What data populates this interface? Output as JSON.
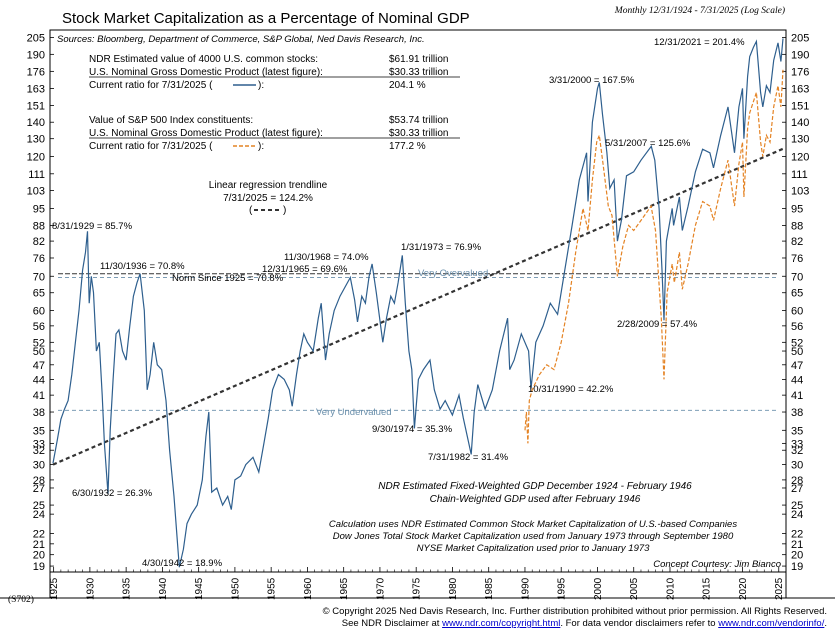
{
  "chart_data": {
    "type": "line",
    "title": "Stock Market Capitalization as a Percentage of Nominal GDP",
    "subtitle": "Monthly 12/31/1924 - 7/31/2025 (Log Scale)",
    "source": "Sources: Bloomberg, Department of Commerce, S&P Global, Ned Davis Research, Inc.",
    "chart_id": "(S702)",
    "y_scale": "log",
    "ylim": [
      18.5,
      212
    ],
    "xlim": [
      1924.5,
      2026.0
    ],
    "y_ticks": [
      19,
      20,
      21,
      22,
      24,
      25,
      27,
      28,
      30,
      32,
      33,
      35,
      38,
      41,
      44,
      47,
      50,
      52,
      56,
      60,
      65,
      70,
      76,
      82,
      88,
      95,
      103,
      111,
      120,
      130,
      140,
      151,
      163,
      176,
      190,
      205
    ],
    "x_ticks": [
      1925,
      1930,
      1935,
      1940,
      1945,
      1950,
      1955,
      1960,
      1965,
      1970,
      1975,
      1980,
      1985,
      1990,
      1995,
      2000,
      2005,
      2010,
      2015,
      2020,
      2025
    ],
    "series": [
      {
        "name": "NDR Estimated value of 4000 U.S. common stocks / GDP",
        "color": "#2e5f8e",
        "points": [
          [
            1924.92,
            30.2
          ],
          [
            1925.5,
            33.5
          ],
          [
            1926.0,
            36.8
          ],
          [
            1926.5,
            38.5
          ],
          [
            1927.0,
            40.0
          ],
          [
            1927.5,
            45.0
          ],
          [
            1928.0,
            52.0
          ],
          [
            1928.5,
            60.0
          ],
          [
            1929.0,
            72.0
          ],
          [
            1929.4,
            78.0
          ],
          [
            1929.67,
            85.7
          ],
          [
            1929.9,
            62.0
          ],
          [
            1930.2,
            70.0
          ],
          [
            1930.5,
            65.0
          ],
          [
            1930.9,
            50.0
          ],
          [
            1931.3,
            52.0
          ],
          [
            1931.7,
            41.0
          ],
          [
            1932.0,
            33.0
          ],
          [
            1932.5,
            26.3
          ],
          [
            1932.8,
            35.0
          ],
          [
            1933.2,
            44.0
          ],
          [
            1933.6,
            54.0
          ],
          [
            1934.0,
            55.0
          ],
          [
            1934.5,
            50.0
          ],
          [
            1935.0,
            48.0
          ],
          [
            1935.5,
            56.0
          ],
          [
            1936.0,
            64.0
          ],
          [
            1936.5,
            68.0
          ],
          [
            1936.92,
            70.8
          ],
          [
            1937.5,
            60.0
          ],
          [
            1937.9,
            42.0
          ],
          [
            1938.3,
            45.0
          ],
          [
            1938.8,
            52.0
          ],
          [
            1939.3,
            47.0
          ],
          [
            1939.9,
            46.0
          ],
          [
            1940.5,
            40.0
          ],
          [
            1941.0,
            32.0
          ],
          [
            1941.6,
            26.0
          ],
          [
            1942.33,
            18.9
          ],
          [
            1942.9,
            20.5
          ],
          [
            1943.4,
            23.0
          ],
          [
            1944.0,
            24.0
          ],
          [
            1944.8,
            25.0
          ],
          [
            1945.5,
            28.0
          ],
          [
            1946.0,
            34.0
          ],
          [
            1946.4,
            38.0
          ],
          [
            1946.8,
            26.5
          ],
          [
            1947.5,
            27.0
          ],
          [
            1948.3,
            25.0
          ],
          [
            1949.0,
            26.0
          ],
          [
            1949.5,
            24.5
          ],
          [
            1950.0,
            28.0
          ],
          [
            1950.8,
            28.5
          ],
          [
            1951.5,
            30.0
          ],
          [
            1952.5,
            31.0
          ],
          [
            1953.3,
            29.0
          ],
          [
            1954.0,
            33.0
          ],
          [
            1954.6,
            37.0
          ],
          [
            1955.2,
            42.0
          ],
          [
            1956.0,
            45.0
          ],
          [
            1956.8,
            44.0
          ],
          [
            1957.5,
            42.0
          ],
          [
            1957.9,
            39.0
          ],
          [
            1958.5,
            45.0
          ],
          [
            1959.0,
            50.0
          ],
          [
            1959.5,
            54.0
          ],
          [
            1960.0,
            52.0
          ],
          [
            1960.8,
            50.0
          ],
          [
            1961.5,
            58.0
          ],
          [
            1961.9,
            62.0
          ],
          [
            1962.5,
            48.0
          ],
          [
            1963.0,
            54.0
          ],
          [
            1963.7,
            60.0
          ],
          [
            1964.5,
            64.0
          ],
          [
            1965.92,
            69.6
          ],
          [
            1966.5,
            63.0
          ],
          [
            1966.9,
            57.0
          ],
          [
            1967.5,
            64.0
          ],
          [
            1968.0,
            62.0
          ],
          [
            1968.5,
            70.0
          ],
          [
            1968.92,
            74.0
          ],
          [
            1969.5,
            65.0
          ],
          [
            1970.4,
            52.0
          ],
          [
            1970.9,
            58.0
          ],
          [
            1971.5,
            64.0
          ],
          [
            1972.0,
            62.0
          ],
          [
            1972.5,
            68.0
          ],
          [
            1973.08,
            76.9
          ],
          [
            1973.5,
            62.0
          ],
          [
            1974.0,
            50.0
          ],
          [
            1974.4,
            46.0
          ],
          [
            1974.75,
            35.3
          ],
          [
            1975.3,
            44.0
          ],
          [
            1976.0,
            46.0
          ],
          [
            1976.9,
            48.0
          ],
          [
            1977.5,
            42.0
          ],
          [
            1978.3,
            38.5
          ],
          [
            1979.0,
            40.0
          ],
          [
            1980.0,
            37.5
          ],
          [
            1980.9,
            41.0
          ],
          [
            1981.5,
            37.0
          ],
          [
            1982.58,
            31.4
          ],
          [
            1983.0,
            38.0
          ],
          [
            1983.5,
            43.0
          ],
          [
            1984.5,
            38.5
          ],
          [
            1985.5,
            42.0
          ],
          [
            1986.5,
            50.0
          ],
          [
            1987.6,
            58.0
          ],
          [
            1987.9,
            46.0
          ],
          [
            1988.5,
            48.0
          ],
          [
            1989.5,
            54.0
          ],
          [
            1990.5,
            50.0
          ],
          [
            1990.83,
            42.2
          ],
          [
            1991.5,
            52.0
          ],
          [
            1992.5,
            56.0
          ],
          [
            1993.5,
            62.0
          ],
          [
            1994.5,
            59.0
          ],
          [
            1995.5,
            72.0
          ],
          [
            1996.5,
            88.0
          ],
          [
            1997.5,
            108.0
          ],
          [
            1998.5,
            122.0
          ],
          [
            1998.7,
            98.0
          ],
          [
            1999.3,
            140.0
          ],
          [
            2000.0,
            163.0
          ],
          [
            2000.25,
            167.5
          ],
          [
            2000.7,
            145.0
          ],
          [
            2001.3,
            122.0
          ],
          [
            2001.7,
            104.0
          ],
          [
            2002.3,
            108.0
          ],
          [
            2002.75,
            82.0
          ],
          [
            2003.3,
            90.0
          ],
          [
            2004.0,
            110.0
          ],
          [
            2005.0,
            112.0
          ],
          [
            2006.0,
            118.0
          ],
          [
            2007.42,
            125.6
          ],
          [
            2007.9,
            118.0
          ],
          [
            2008.5,
            95.0
          ],
          [
            2008.9,
            72.0
          ],
          [
            2009.17,
            57.4
          ],
          [
            2009.5,
            82.0
          ],
          [
            2010.3,
            95.0
          ],
          [
            2010.5,
            88.0
          ],
          [
            2011.3,
            100.0
          ],
          [
            2011.7,
            86.0
          ],
          [
            2012.5,
            96.0
          ],
          [
            2013.5,
            112.0
          ],
          [
            2014.5,
            124.0
          ],
          [
            2015.5,
            122.0
          ],
          [
            2016.0,
            114.0
          ],
          [
            2017.0,
            132.0
          ],
          [
            2018.0,
            150.0
          ],
          [
            2018.9,
            122.0
          ],
          [
            2019.5,
            150.0
          ],
          [
            2020.0,
            163.0
          ],
          [
            2020.2,
            130.0
          ],
          [
            2020.7,
            172.0
          ],
          [
            2021.0,
            188.0
          ],
          [
            2021.5,
            196.0
          ],
          [
            2021.92,
            201.4
          ],
          [
            2022.5,
            160.0
          ],
          [
            2022.8,
            150.0
          ],
          [
            2023.3,
            165.0
          ],
          [
            2023.8,
            160.0
          ],
          [
            2024.3,
            185.0
          ],
          [
            2024.9,
            200.0
          ],
          [
            2025.3,
            184.0
          ],
          [
            2025.58,
            204.1
          ]
        ]
      },
      {
        "name": "Value of S&P 500 Index constituents / GDP",
        "color": "#e48324",
        "dashed": true,
        "points": [
          [
            1990.0,
            35.0
          ],
          [
            1990.2,
            38.0
          ],
          [
            1990.4,
            33.0
          ],
          [
            1990.6,
            40.0
          ],
          [
            1991.0,
            42.0
          ],
          [
            1992.0,
            45.0
          ],
          [
            1993.0,
            47.0
          ],
          [
            1994.0,
            46.0
          ],
          [
            1995.0,
            52.0
          ],
          [
            1996.0,
            62.0
          ],
          [
            1997.0,
            78.0
          ],
          [
            1998.0,
            95.0
          ],
          [
            1998.7,
            86.0
          ],
          [
            1999.3,
            108.0
          ],
          [
            1999.9,
            128.0
          ],
          [
            2000.25,
            132.0
          ],
          [
            2000.8,
            115.0
          ],
          [
            2001.5,
            96.0
          ],
          [
            2002.0,
            92.0
          ],
          [
            2002.75,
            70.0
          ],
          [
            2003.5,
            80.0
          ],
          [
            2004.3,
            88.0
          ],
          [
            2005.0,
            86.0
          ],
          [
            2006.0,
            90.0
          ],
          [
            2007.4,
            96.0
          ],
          [
            2008.0,
            86.0
          ],
          [
            2008.8,
            58.0
          ],
          [
            2009.17,
            44.0
          ],
          [
            2009.6,
            65.0
          ],
          [
            2010.3,
            74.0
          ],
          [
            2010.6,
            68.0
          ],
          [
            2011.3,
            78.0
          ],
          [
            2011.7,
            66.0
          ],
          [
            2012.5,
            74.0
          ],
          [
            2013.5,
            88.0
          ],
          [
            2014.5,
            98.0
          ],
          [
            2015.5,
            96.0
          ],
          [
            2016.0,
            90.0
          ],
          [
            2017.0,
            104.0
          ],
          [
            2018.0,
            118.0
          ],
          [
            2018.9,
            96.0
          ],
          [
            2019.5,
            116.0
          ],
          [
            2020.0,
            128.0
          ],
          [
            2020.2,
            100.0
          ],
          [
            2020.7,
            136.0
          ],
          [
            2021.0,
            146.0
          ],
          [
            2021.92,
            160.0
          ],
          [
            2022.5,
            128.0
          ],
          [
            2022.8,
            120.0
          ],
          [
            2023.3,
            132.0
          ],
          [
            2023.8,
            128.0
          ],
          [
            2024.3,
            150.0
          ],
          [
            2024.9,
            165.0
          ],
          [
            2025.3,
            150.0
          ],
          [
            2025.58,
            177.2
          ]
        ]
      }
    ],
    "regression": {
      "label": "Linear regression trendline",
      "value_label": "7/31/2025 = 124.2%",
      "start": [
        1924.92,
        30.0
      ],
      "end": [
        2025.58,
        124.2
      ],
      "color": "#333333"
    },
    "reference_lines": [
      {
        "value": 70.8,
        "label": "Norm Since 1925 = 70.8%",
        "color": "#333333",
        "dashed": true
      },
      {
        "value": 69.6,
        "label": "Very Overvalued",
        "color": "#6a8fab",
        "dashed": true
      },
      {
        "value": 38.3,
        "label": "Very Undervalued",
        "color": "#6a8fab",
        "dashed": true
      }
    ],
    "annotations": [
      {
        "text": "8/31/1929 = 85.7%"
      },
      {
        "text": "11/30/1936 = 70.8%"
      },
      {
        "text": "6/30/1932 = 26.3%"
      },
      {
        "text": "4/30/1942 = 18.9%"
      },
      {
        "text": "11/30/1968 = 74.0%"
      },
      {
        "text": "12/31/1965 = 69.6%"
      },
      {
        "text": "1/31/1973 = 76.9%"
      },
      {
        "text": "9/30/1974 = 35.3%"
      },
      {
        "text": "7/31/1982 = 31.4%"
      },
      {
        "text": "10/31/1990 = 42.2%"
      },
      {
        "text": "3/31/2000 = 167.5%"
      },
      {
        "text": "5/31/2007 = 125.6%"
      },
      {
        "text": "2/28/2009 = 57.4%"
      },
      {
        "text": "12/31/2021 = 201.4%"
      }
    ],
    "legend_box": {
      "ndr": {
        "l1_label": "NDR Estimated value of 4000 U.S. common stocks:",
        "l1_value": "$61.91 trillion",
        "l2_label": "U.S. Nominal Gross Domestic Product (latest figure):",
        "l2_value": "$30.33 trillion",
        "l3_label": "Current ratio for 7/31/2025 (",
        "l3_close": "):",
        "l3_value": "204.1 %"
      },
      "sp": {
        "l1_label": "Value of S&P 500 Index constituents:",
        "l1_value": "$53.74 trillion",
        "l2_label": "U.S. Nominal Gross Domestic Product (latest figure):",
        "l2_value": "$30.33 trillion",
        "l3_label": "Current ratio for 7/31/2025 (",
        "l3_close": "):",
        "l3_value": "177.2 %"
      },
      "reg_close": ")"
    },
    "notes": {
      "gdp_line1": "NDR Estimated Fixed-Weighted GDP December 1924 - February 1946",
      "gdp_line2": "Chain-Weighted GDP used after February 1946",
      "calc_line1": "Calculation uses NDR Estimated Common Stock Market Capitalization of U.S.-based Companies",
      "calc_line2": "Dow Jones Total Stock Market Capitalization used from January 1973 through September 1980",
      "calc_line3": "NYSE Market Capitalization used prior to January 1973",
      "courtesy": "Concept Courtesy: Jim Bianco"
    }
  },
  "footer": {
    "line1": "© Copyright 2025 Ned Davis Research, Inc.  Further distribution prohibited without prior permission.  All Rights Reserved.",
    "line2_prefix": "See NDR Disclaimer at ",
    "link1": "www.ndr.com/copyright.html",
    "line2_mid": ". For data vendor disclaimers refer to ",
    "link2": "www.ndr.com/vendorinfo/",
    "line2_suffix": "."
  }
}
